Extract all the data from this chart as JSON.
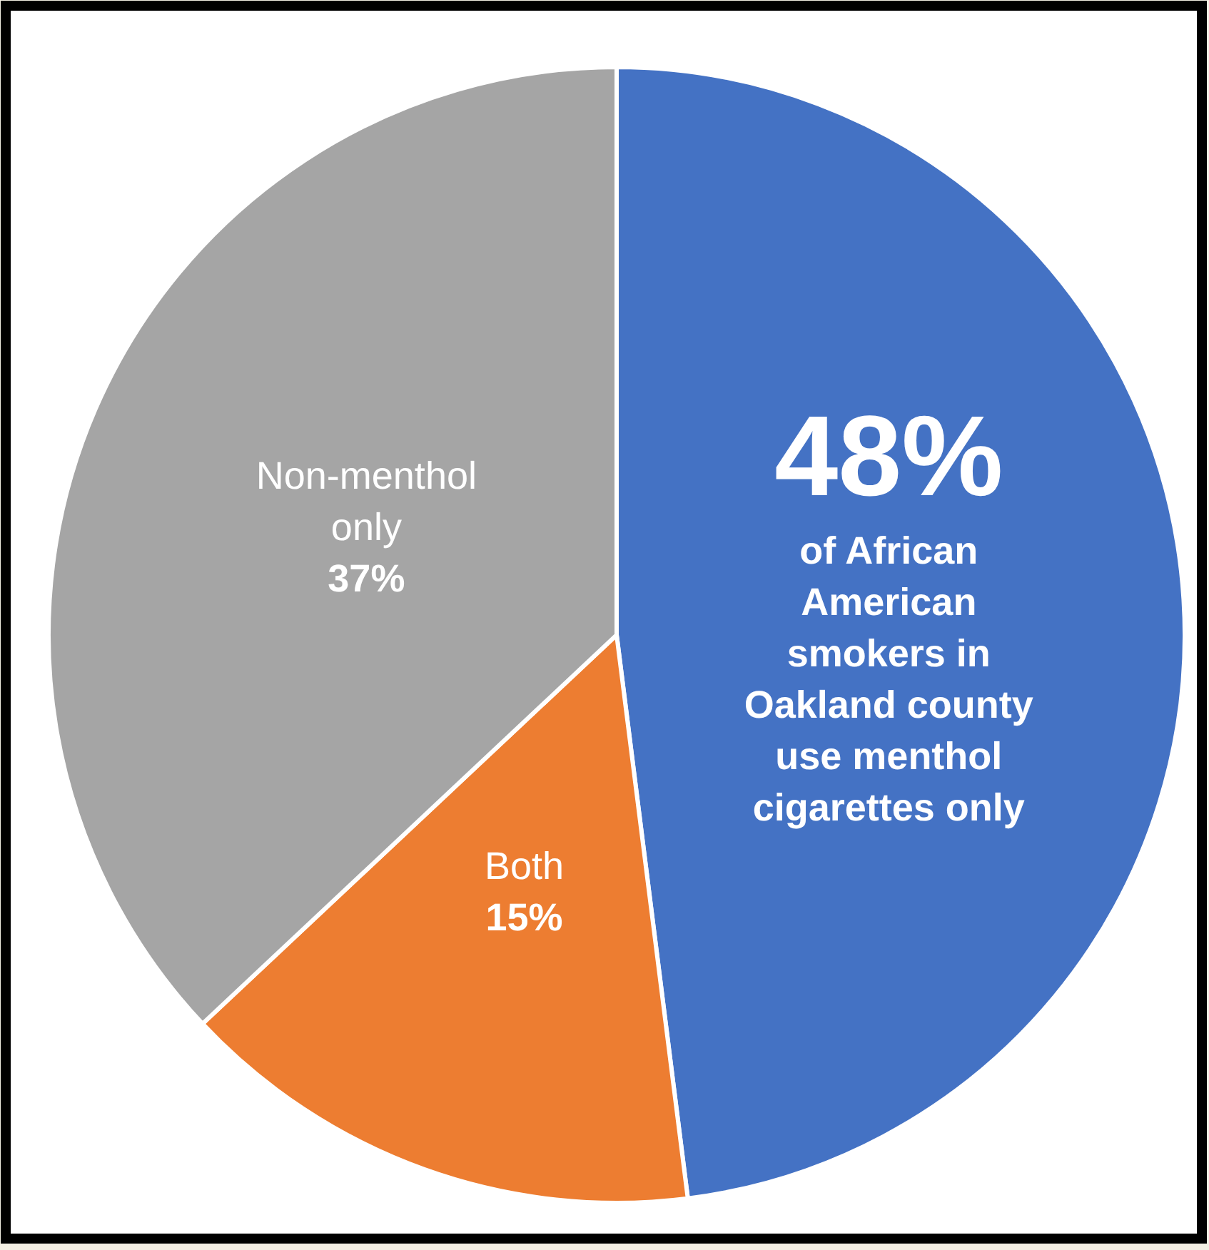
{
  "chart_data": {
    "type": "pie",
    "categories": [
      "of African American smokers in Oakland county use menthol cigarettes only",
      "Both",
      "Non-menthol only"
    ],
    "values": [
      48,
      15,
      37
    ],
    "colors": [
      "#4472c4",
      "#ed7d31",
      "#a5a5a5"
    ],
    "value_labels": [
      "48%",
      "15%",
      "37%"
    ],
    "legend": false
  }
}
